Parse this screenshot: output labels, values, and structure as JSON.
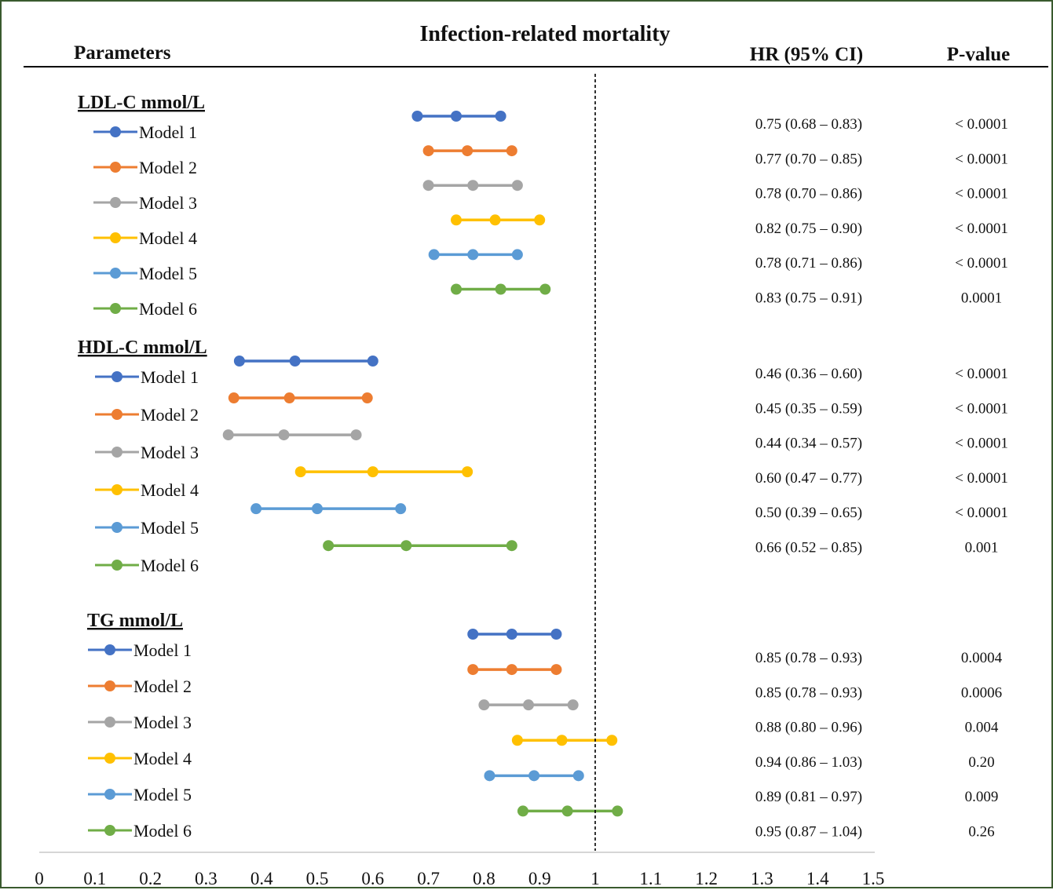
{
  "header": {
    "title": "Infection-related mortality",
    "parameters_label": "Parameters",
    "hr_label": "HR (95% CI)",
    "p_label": "P-value"
  },
  "colors": {
    "model_1": "#4472c4",
    "model_2": "#ed7d31",
    "model_3": "#a5a5a5",
    "model_4": "#ffc000",
    "model_5": "#5b9bd5",
    "model_6": "#70ad47",
    "reference_line": "#000000",
    "frame_border": "#3a5a2e"
  },
  "chart_data": {
    "type": "scatter",
    "subtype": "forest-plot",
    "title": "Infection-related mortality",
    "xlim": [
      0,
      1.5
    ],
    "x_ticks": [
      "0",
      "0.1",
      "0.2",
      "0.3",
      "0.4",
      "0.5",
      "0.6",
      "0.7",
      "0.8",
      "0.9",
      "1",
      "1.1",
      "1.2",
      "1.3",
      "1.4",
      "1.5"
    ],
    "reference_value": 1,
    "groups": [
      {
        "name": "LDL-C mmol/L",
        "rows": [
          {
            "label": "Model 1",
            "hr": 0.75,
            "lo": 0.68,
            "hi": 0.83,
            "hr_text": "0.75  (0.68 – 0.83)",
            "p": "< 0.0001"
          },
          {
            "label": "Model 2",
            "hr": 0.77,
            "lo": 0.7,
            "hi": 0.85,
            "hr_text": "0.77  (0.70  – 0.85)",
            "p": "< 0.0001"
          },
          {
            "label": "Model 3",
            "hr": 0.78,
            "lo": 0.7,
            "hi": 0.86,
            "hr_text": "0.78  (0.70 – 0.86)",
            "p": "< 0.0001"
          },
          {
            "label": "Model 4",
            "hr": 0.82,
            "lo": 0.75,
            "hi": 0.9,
            "hr_text": "0.82  (0.75  – 0.90)",
            "p": "< 0.0001"
          },
          {
            "label": "Model 5",
            "hr": 0.78,
            "lo": 0.71,
            "hi": 0.86,
            "hr_text": "0.78  (0.71 – 0.86)",
            "p": "< 0.0001"
          },
          {
            "label": "Model 6",
            "hr": 0.83,
            "lo": 0.75,
            "hi": 0.91,
            "hr_text": "0.83  (0.75  – 0.91)",
            "p": "0.0001"
          }
        ]
      },
      {
        "name": "HDL-C mmol/L",
        "rows": [
          {
            "label": "Model 1",
            "hr": 0.46,
            "lo": 0.36,
            "hi": 0.6,
            "hr_text": "0.46  (0.36 – 0.60)",
            "p": "< 0.0001"
          },
          {
            "label": "Model 2",
            "hr": 0.45,
            "lo": 0.35,
            "hi": 0.59,
            "hr_text": "0.45  (0.35  – 0.59)",
            "p": "< 0.0001"
          },
          {
            "label": "Model 3",
            "hr": 0.44,
            "lo": 0.34,
            "hi": 0.57,
            "hr_text": "0.44  (0.34 – 0.57)",
            "p": "< 0.0001"
          },
          {
            "label": "Model 4",
            "hr": 0.6,
            "lo": 0.47,
            "hi": 0.77,
            "hr_text": "0.60  (0.47  – 0.77)",
            "p": "< 0.0001"
          },
          {
            "label": "Model 5",
            "hr": 0.5,
            "lo": 0.39,
            "hi": 0.65,
            "hr_text": "0.50  (0.39 – 0.65)",
            "p": "< 0.0001"
          },
          {
            "label": "Model 6",
            "hr": 0.66,
            "lo": 0.52,
            "hi": 0.85,
            "hr_text": "0.66  (0.52  – 0.85)",
            "p": "0.001"
          }
        ]
      },
      {
        "name": "TG mmol/L",
        "rows": [
          {
            "label": "Model 1",
            "hr": 0.85,
            "lo": 0.78,
            "hi": 0.93,
            "hr_text": "0.85  (0.78 – 0.93)",
            "p": "0.0004"
          },
          {
            "label": "Model 2",
            "hr": 0.85,
            "lo": 0.78,
            "hi": 0.93,
            "hr_text": "0.85  (0.78  – 0.93)",
            "p": "0.0006"
          },
          {
            "label": "Model 3",
            "hr": 0.88,
            "lo": 0.8,
            "hi": 0.96,
            "hr_text": "0.88  (0.80 – 0.96)",
            "p": "0.004"
          },
          {
            "label": "Model 4",
            "hr": 0.94,
            "lo": 0.86,
            "hi": 1.03,
            "hr_text": "0.94  (0.86  – 1.03)",
            "p": "0.20"
          },
          {
            "label": "Model 5",
            "hr": 0.89,
            "lo": 0.81,
            "hi": 0.97,
            "hr_text": "0.89  (0.81 – 0.97)",
            "p": "0.009"
          },
          {
            "label": "Model 6",
            "hr": 0.95,
            "lo": 0.87,
            "hi": 1.04,
            "hr_text": "0.95  (0.87  – 1.04)",
            "p": "0.26"
          }
        ]
      }
    ]
  }
}
